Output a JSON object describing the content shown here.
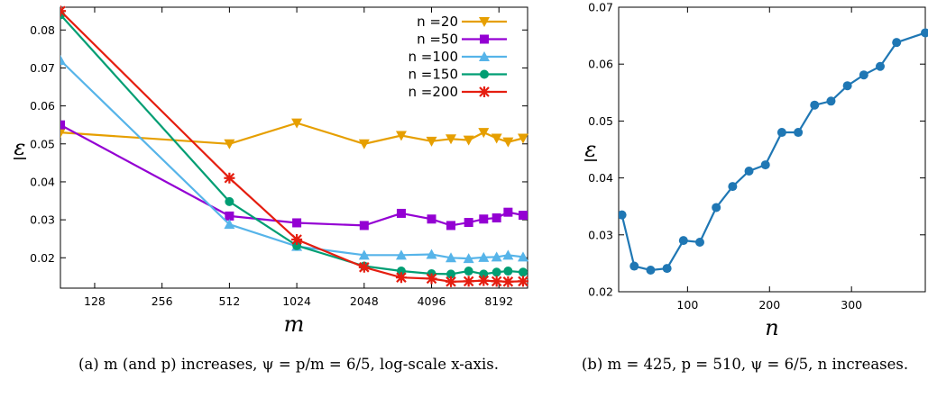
{
  "chart_data": [
    {
      "type": "line",
      "xscale": "log2",
      "xlim": [
        90,
        11000
      ],
      "ylim": [
        0.012,
        0.086
      ],
      "xticks": [
        128,
        256,
        512,
        1024,
        2048,
        4096,
        8192
      ],
      "xtick_labels": [
        "128",
        "256",
        "512",
        "1024",
        "2048",
        "4096",
        "8192"
      ],
      "yticks": [
        0.02,
        0.03,
        0.04,
        0.05,
        0.06,
        0.07,
        0.08
      ],
      "ytick_labels": [
        "0.02",
        "0.03",
        "0.04",
        "0.05",
        "0.06",
        "0.07",
        "0.08"
      ],
      "xlabel": "m",
      "ylabel": "ε",
      "legend": "top-right",
      "caption": "(a) m (and p) increases, ψ = p/m = 6/5, log-scale x-axis.",
      "x": [
        90,
        512,
        1024,
        2048,
        3000,
        4096,
        5000,
        6000,
        7000,
        8000,
        9000,
        10500
      ],
      "series": [
        {
          "name": "n =20",
          "color": "#E69F00",
          "marker": "triangle-down",
          "values": [
            0.053,
            0.05,
            0.0555,
            0.05,
            0.0522,
            0.0507,
            0.0513,
            0.051,
            0.053,
            0.0515,
            0.0505,
            0.0515
          ]
        },
        {
          "name": "n =50",
          "color": "#9400D3",
          "marker": "square",
          "values": [
            0.055,
            0.031,
            0.0292,
            0.0285,
            0.0317,
            0.0302,
            0.0285,
            0.0293,
            0.0302,
            0.0305,
            0.032,
            0.0312
          ]
        },
        {
          "name": "n =100",
          "color": "#56B4E9",
          "marker": "triangle-up",
          "values": [
            0.072,
            0.0288,
            0.023,
            0.0207,
            0.0207,
            0.0209,
            0.02,
            0.0198,
            0.0201,
            0.0202,
            0.0207,
            0.0202
          ]
        },
        {
          "name": "n =150",
          "color": "#009E73",
          "marker": "circle",
          "values": [
            0.084,
            0.0348,
            0.0232,
            0.0178,
            0.0165,
            0.0158,
            0.0157,
            0.0165,
            0.0157,
            0.0162,
            0.0165,
            0.0162
          ]
        },
        {
          "name": "n =200",
          "color": "#E51E10",
          "marker": "x",
          "values": [
            0.085,
            0.041,
            0.0248,
            0.0175,
            0.0148,
            0.0145,
            0.0137,
            0.0138,
            0.014,
            0.0138,
            0.0137,
            0.0138
          ]
        }
      ]
    },
    {
      "type": "line",
      "xlim": [
        16,
        390
      ],
      "ylim": [
        0.02,
        0.07
      ],
      "xticks": [
        100,
        200,
        300
      ],
      "xtick_labels": [
        "100",
        "200",
        "300"
      ],
      "yticks": [
        0.02,
        0.03,
        0.04,
        0.05,
        0.06,
        0.07
      ],
      "ytick_labels": [
        "0.02",
        "0.03",
        "0.04",
        "0.05",
        "0.06",
        "0.07"
      ],
      "xlabel": "n",
      "ylabel": "ε",
      "caption": "(b) m = 425, p = 510, ψ = 6/5, n increases.",
      "x": [
        20,
        35,
        55,
        75,
        95,
        115,
        135,
        155,
        175,
        195,
        215,
        235,
        255,
        275,
        295,
        315,
        335,
        355,
        390
      ],
      "series": [
        {
          "name": "",
          "color": "#1f77b4",
          "marker": "circle",
          "values": [
            0.0335,
            0.0245,
            0.0238,
            0.0241,
            0.029,
            0.0287,
            0.0348,
            0.0385,
            0.0412,
            0.0423,
            0.048,
            0.048,
            0.0528,
            0.0535,
            0.0562,
            0.0581,
            0.0596,
            0.0638,
            0.0655
          ]
        }
      ]
    }
  ]
}
